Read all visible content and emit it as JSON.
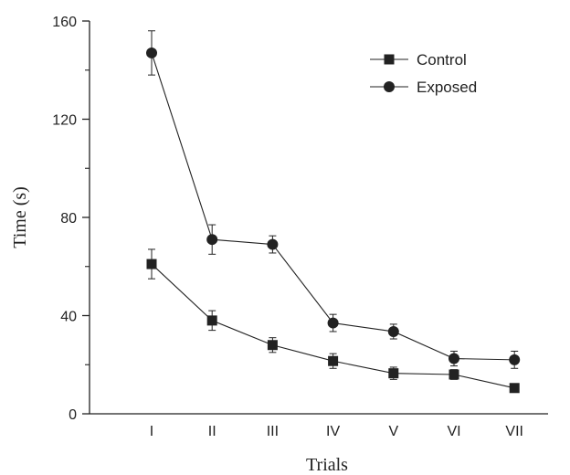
{
  "chart_data": {
    "type": "line",
    "title": "",
    "xlabel": "Trials",
    "ylabel": "Time (s)",
    "categories": [
      "I",
      "II",
      "III",
      "IV",
      "V",
      "VI",
      "VII"
    ],
    "ylim": [
      0,
      160
    ],
    "yticks": [
      "0",
      "40",
      "80",
      "120",
      "160"
    ],
    "grid": false,
    "legend_position": "top-right",
    "series": [
      {
        "name": "Control",
        "marker": "square",
        "color": "#222222",
        "values": [
          61,
          38,
          28,
          21.5,
          16.5,
          16,
          10.5
        ],
        "error": [
          6,
          4,
          3,
          3,
          2.5,
          2,
          1.5
        ]
      },
      {
        "name": "Exposed",
        "marker": "circle",
        "color": "#222222",
        "values": [
          147,
          71,
          69,
          37,
          33.5,
          22.5,
          22
        ],
        "error": [
          9,
          6,
          3.5,
          3.5,
          3,
          3,
          3.5
        ]
      }
    ]
  }
}
